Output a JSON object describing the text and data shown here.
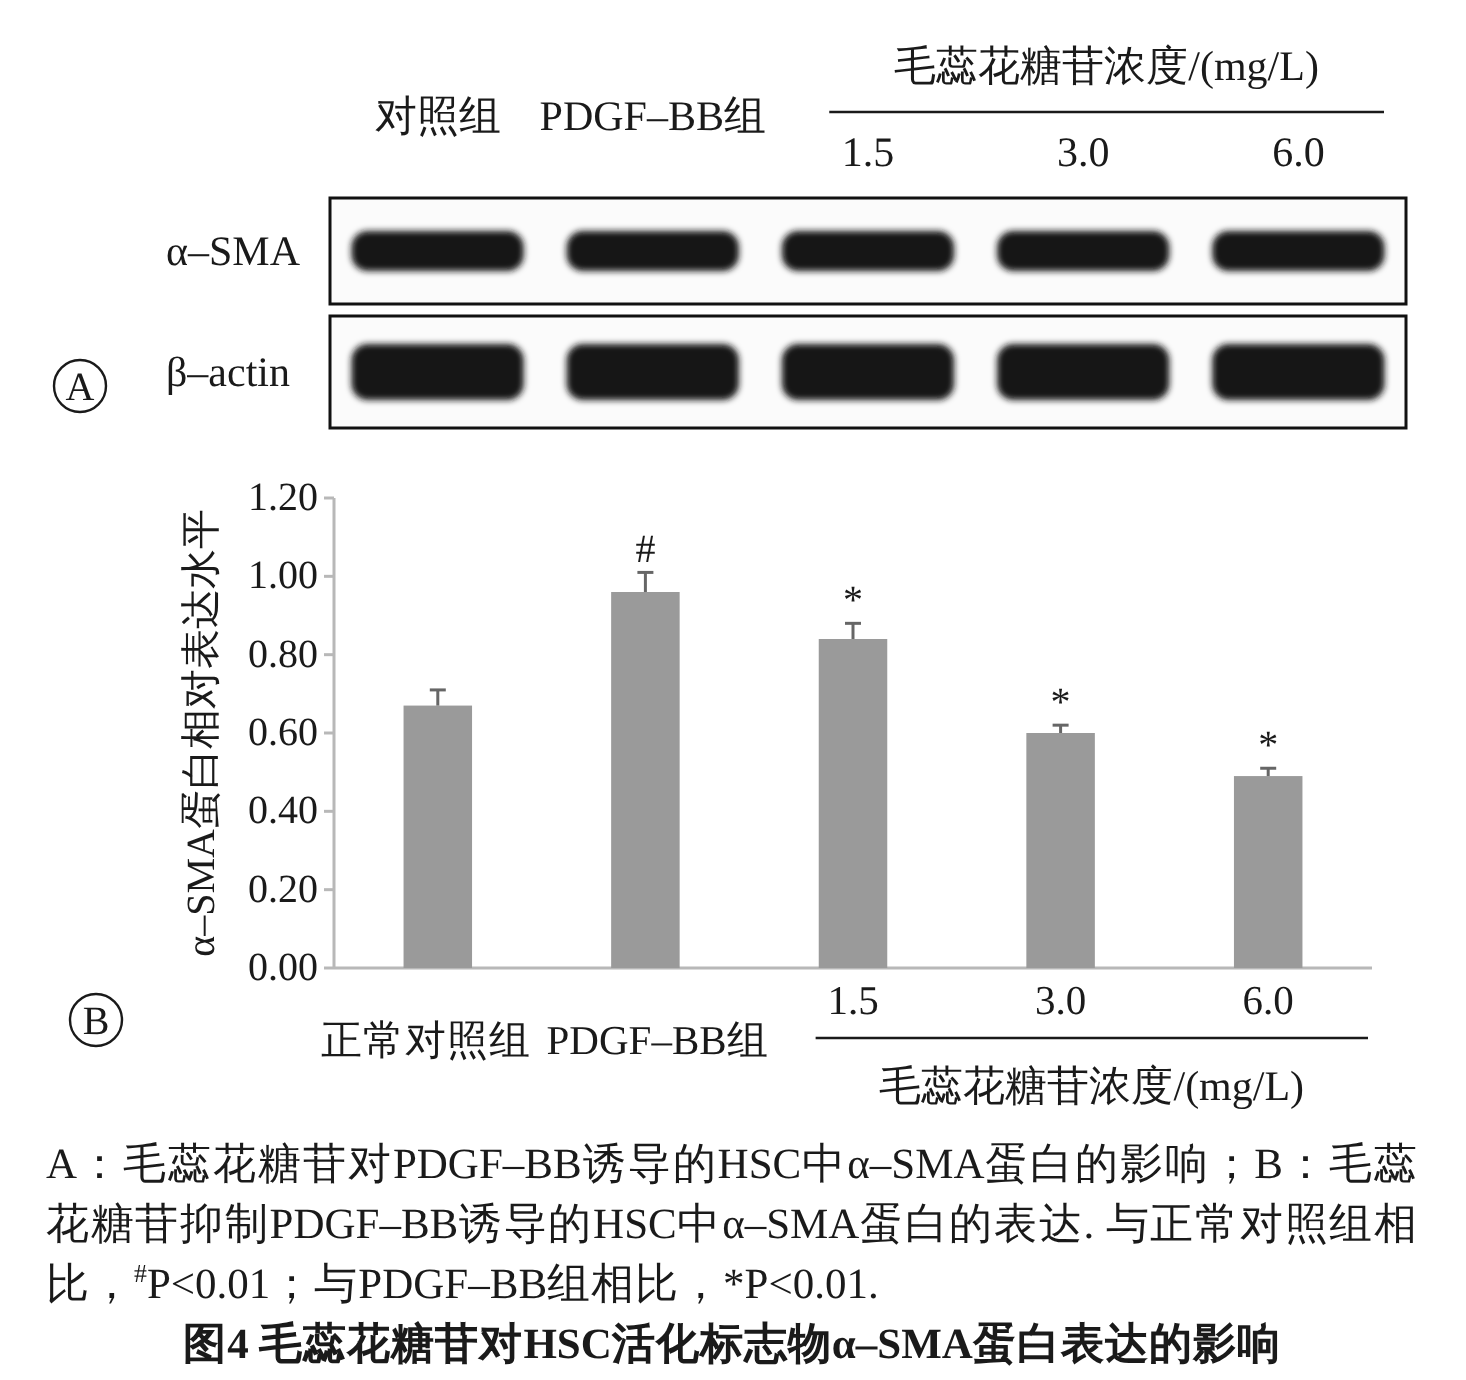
{
  "chart_data": [
    {
      "type": "other",
      "title": "A",
      "categories": [
        "对照组",
        "PDGF–BB组",
        "1.5",
        "3.0",
        "6.0"
      ],
      "xlabel": "毛蕊花糖苷浓度/(mg/L)",
      "y_categories": [
        "α–SMA",
        "β–actin"
      ]
    },
    {
      "type": "bar",
      "title": "B",
      "categories": [
        "正常对照组",
        "PDGF–BB组",
        "1.5",
        "3.0",
        "6.0"
      ],
      "values": [
        0.67,
        0.96,
        0.84,
        0.6,
        0.49
      ],
      "errors": [
        [
          0.67,
          0.71
        ],
        [
          0.96,
          1.01
        ],
        [
          0.84,
          0.88
        ],
        [
          0.6,
          0.62
        ],
        [
          0.49,
          0.51
        ]
      ],
      "color": "#9a9a9a",
      "ylim": [
        0,
        1.2
      ],
      "yticks": [
        {
          "value": 0,
          "label": "0.00"
        },
        {
          "value": 0.2,
          "label": "0.20"
        },
        {
          "value": 0.4,
          "label": "0.40"
        },
        {
          "value": 0.6,
          "label": "0.60"
        },
        {
          "value": 0.8,
          "label": "0.80"
        },
        {
          "value": 1,
          "label": "1.00"
        },
        {
          "value": 1.2,
          "label": "1.20"
        }
      ],
      "xlabel": "毛蕊花糖苷浓度/(mg/L)",
      "ylabel": "α–SMA蛋白相对表达水平",
      "annotations": [
        {
          "text": "#",
          "x": "PDGF–BB组",
          "y": 1.01
        },
        {
          "text": "*",
          "x": "1.5",
          "y": 0.88
        },
        {
          "text": "*",
          "x": "3.0",
          "y": 0.62
        },
        {
          "text": "*",
          "x": "6.0",
          "y": 0.51
        }
      ]
    },
    {
      "type": "other",
      "title": "图4 毛蕊花糖苷对HSC活化标志物α–SMA蛋白表达的影响",
      "annotations": [
        "A：毛蕊花糖苷对PDGF–BB诱导的HSC中α–SMA蛋白的影响；B：毛蕊花糖苷抑制PDGF–BB诱导的HSC中α–SMA蛋白的表达. 与正常对照组相比，$^{#}$P<0.01；与PDGF–BB组相比，*P<0.01."
      ]
    }
  ]
}
